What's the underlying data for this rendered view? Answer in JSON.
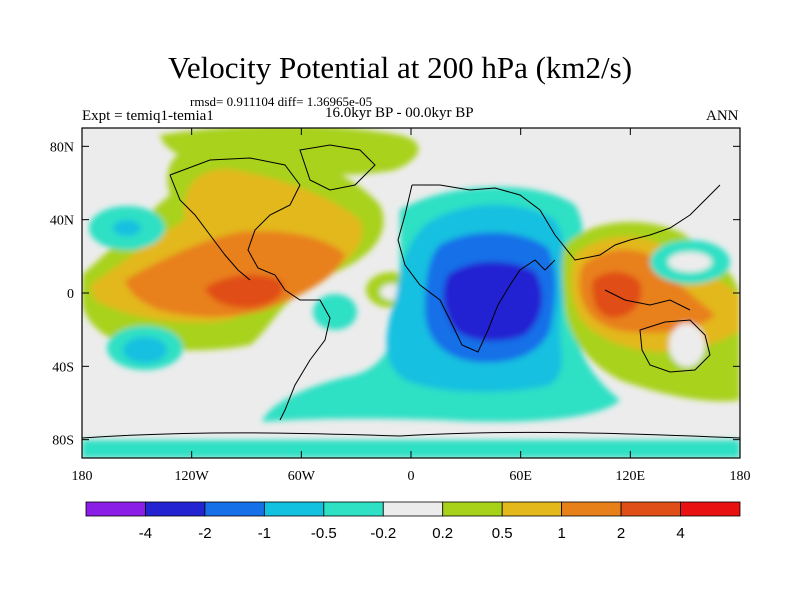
{
  "title": "Velocity Potential at 200 hPa (km2/s)",
  "stats": "rmsd= 0.911104 diff= 1.36965e-05",
  "experiment": "Expt = temiq1-temia1",
  "period": "16.0kyr BP - 00.0kyr BP",
  "season": "ANN",
  "map": {
    "projection": "cylindrical-equidistant",
    "lon_range": [
      -180,
      180
    ],
    "lat_range": [
      -90,
      90
    ],
    "lon_ticks": [
      {
        "value": -180,
        "label": "180"
      },
      {
        "value": -120,
        "label": "120W"
      },
      {
        "value": -60,
        "label": "60W"
      },
      {
        "value": 0,
        "label": "0"
      },
      {
        "value": 60,
        "label": "60E"
      },
      {
        "value": 120,
        "label": "120E"
      },
      {
        "value": 180,
        "label": "180"
      }
    ],
    "lat_ticks": [
      {
        "value": 80,
        "label": "80N"
      },
      {
        "value": 40,
        "label": "40N"
      },
      {
        "value": 0,
        "label": "0"
      },
      {
        "value": -40,
        "label": "40S"
      },
      {
        "value": -80,
        "label": "80S"
      }
    ],
    "background_color": "#ececec",
    "centers": [
      {
        "lon": 45,
        "lat": -5,
        "level": "-4..-2",
        "color": "#2323d2"
      },
      {
        "lon": -105,
        "lat": 0,
        "level": "2..4",
        "color": "#e83c1a"
      },
      {
        "lon": 110,
        "lat": -5,
        "level": "2..4",
        "color": "#e83c1a"
      },
      {
        "lon": -150,
        "lat": 32,
        "level": "-1..-0.5",
        "color": "#12c0e0"
      },
      {
        "lon": -140,
        "lat": -30,
        "level": "-1..-0.5",
        "color": "#12c0e0"
      },
      {
        "lon": -25,
        "lat": 5,
        "level": "0.2..0.5",
        "color": "#a8d21a"
      }
    ]
  },
  "colorbar": {
    "colors": [
      "#8a1ee6",
      "#2323d2",
      "#1670e8",
      "#12c0e0",
      "#2ee0c4",
      "#ececec",
      "#a8d21a",
      "#e3b81a",
      "#e8801a",
      "#e04e18",
      "#e81010"
    ],
    "labels": [
      "-4",
      "-2",
      "-1",
      "-0.5",
      "-0.2",
      "0.2",
      "0.5",
      "1",
      "2",
      "4"
    ]
  }
}
